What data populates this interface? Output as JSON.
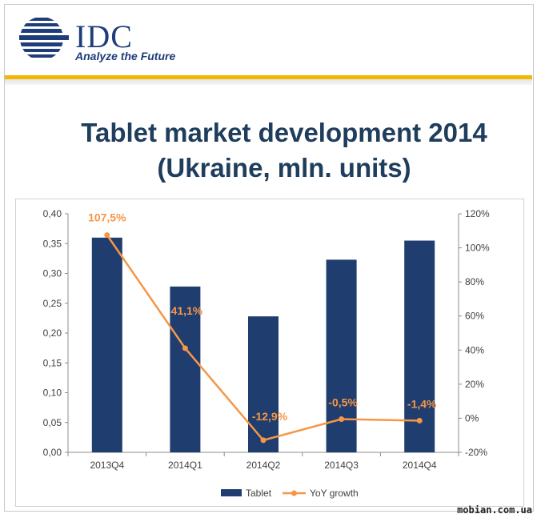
{
  "header": {
    "logo_text": "IDC",
    "tagline": "Analyze the Future"
  },
  "title": {
    "line1": "Tablet market development 2014",
    "line2": "(Ukraine, mln. units)"
  },
  "watermark": "mobian.com.ua",
  "colors": {
    "bar": "#1f3d6e",
    "line": "#f79646",
    "title": "#1f3d5c",
    "gold": "#f2b705"
  },
  "chart_data": {
    "type": "bar",
    "categories": [
      "2013Q4",
      "2014Q1",
      "2014Q2",
      "2014Q3",
      "2014Q4"
    ],
    "series": [
      {
        "name": "Tablet",
        "type": "bar",
        "axis": "left",
        "values": [
          0.36,
          0.278,
          0.228,
          0.323,
          0.355
        ]
      },
      {
        "name": "YoY growth",
        "type": "line",
        "axis": "right",
        "values": [
          107.5,
          41.1,
          -12.9,
          -0.5,
          -1.4
        ],
        "labels": [
          "107,5%",
          "41,1%",
          "-12,9%",
          "-0,5%",
          "-1,4%"
        ]
      }
    ],
    "y_left": {
      "min": 0,
      "max": 0.4,
      "ticks": [
        "0,00",
        "0,05",
        "0,10",
        "0,15",
        "0,20",
        "0,25",
        "0,30",
        "0,35",
        "0,40"
      ]
    },
    "y_right": {
      "min": -20,
      "max": 120,
      "ticks": [
        "-20%",
        "0%",
        "20%",
        "40%",
        "60%",
        "80%",
        "100%",
        "120%"
      ]
    },
    "legend": {
      "position": "bottom",
      "items": [
        "Tablet",
        "YoY growth"
      ]
    },
    "grid": false
  }
}
